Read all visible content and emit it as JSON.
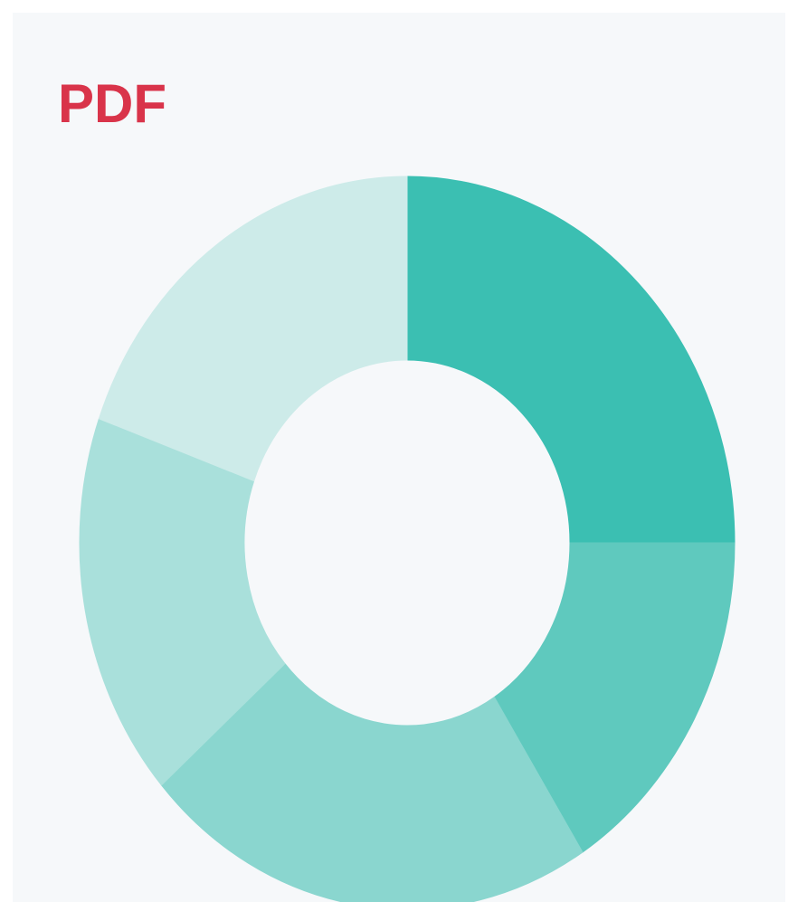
{
  "chart_data": {
    "type": "donut",
    "title": "PDF",
    "values": [
      25,
      16,
      22.5,
      17,
      19.5
    ],
    "colors": [
      "#3bbfb2",
      "#5fc9be",
      "#8ad6cf",
      "#a9e0db",
      "#cdebe9"
    ]
  }
}
